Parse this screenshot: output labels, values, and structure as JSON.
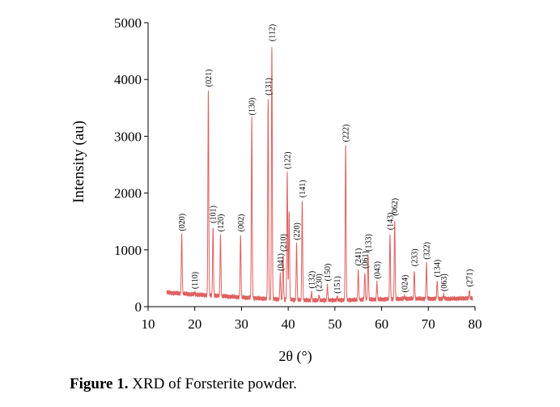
{
  "chart_data": {
    "type": "line",
    "title": "",
    "xlabel": "2θ (°)",
    "ylabel": "Intensity (au)",
    "xlim": [
      10,
      80
    ],
    "ylim": [
      0,
      5000
    ],
    "x_ticks": [
      "10",
      "20",
      "30",
      "40",
      "50",
      "60",
      "70",
      "80"
    ],
    "y_ticks": [
      "0",
      "1000",
      "2000",
      "3000",
      "4000",
      "5000"
    ],
    "grid": false,
    "legend": "none",
    "line_color": "#e06060",
    "range_start": 14,
    "range_end": 79.5,
    "background": [
      [
        14,
        250
      ],
      [
        17,
        230
      ],
      [
        25,
        190
      ],
      [
        35,
        140
      ],
      [
        45,
        110
      ],
      [
        55,
        120
      ],
      [
        65,
        140
      ],
      [
        75,
        140
      ],
      [
        79.5,
        150
      ]
    ],
    "peaks": [
      {
        "x": 17.2,
        "y": 1260,
        "label": "(020)"
      },
      {
        "x": 20.0,
        "y": 240,
        "label": "(110)"
      },
      {
        "x": 22.9,
        "y": 3800,
        "label": "(021)"
      },
      {
        "x": 23.9,
        "y": 1400,
        "label": "(101)"
      },
      {
        "x": 25.5,
        "y": 1250,
        "label": "(120)"
      },
      {
        "x": 29.8,
        "y": 1250,
        "label": "(002)"
      },
      {
        "x": 32.2,
        "y": 3300,
        "label": "(130)"
      },
      {
        "x": 35.7,
        "y": 3650,
        "label": "(131)"
      },
      {
        "x": 36.5,
        "y": 4600,
        "label": "(112)"
      },
      {
        "x": 38.3,
        "y": 560,
        "label": "(041)"
      },
      {
        "x": 38.9,
        "y": 900,
        "label": "(210)"
      },
      {
        "x": 39.8,
        "y": 2350,
        "label": "(122)"
      },
      {
        "x": 40.2,
        "y": 1700,
        "label": ""
      },
      {
        "x": 41.8,
        "y": 1100,
        "label": "(220)"
      },
      {
        "x": 43.0,
        "y": 1850,
        "label": "(141)"
      },
      {
        "x": 45.0,
        "y": 250,
        "label": "(132)"
      },
      {
        "x": 46.6,
        "y": 200,
        "label": "(230)"
      },
      {
        "x": 48.4,
        "y": 380,
        "label": "(150)"
      },
      {
        "x": 50.5,
        "y": 160,
        "label": "(151)"
      },
      {
        "x": 52.3,
        "y": 2830,
        "label": "(222)"
      },
      {
        "x": 55.0,
        "y": 650,
        "label": "(241)"
      },
      {
        "x": 56.4,
        "y": 600,
        "label": "(061)"
      },
      {
        "x": 57.1,
        "y": 900,
        "label": "(133)"
      },
      {
        "x": 59.0,
        "y": 420,
        "label": "(043)"
      },
      {
        "x": 61.8,
        "y": 1280,
        "label": "(143)"
      },
      {
        "x": 62.8,
        "y": 1530,
        "label": "(062)"
      },
      {
        "x": 64.9,
        "y": 180,
        "label": "(024)"
      },
      {
        "x": 67.0,
        "y": 640,
        "label": "(233)"
      },
      {
        "x": 69.6,
        "y": 760,
        "label": "(322)"
      },
      {
        "x": 71.9,
        "y": 450,
        "label": "(134)"
      },
      {
        "x": 73.3,
        "y": 200,
        "label": "(063)"
      },
      {
        "x": 78.8,
        "y": 280,
        "label": "(271)"
      }
    ]
  },
  "caption": {
    "bold": "Figure 1.",
    "text": " XRD of Forsterite powder."
  }
}
